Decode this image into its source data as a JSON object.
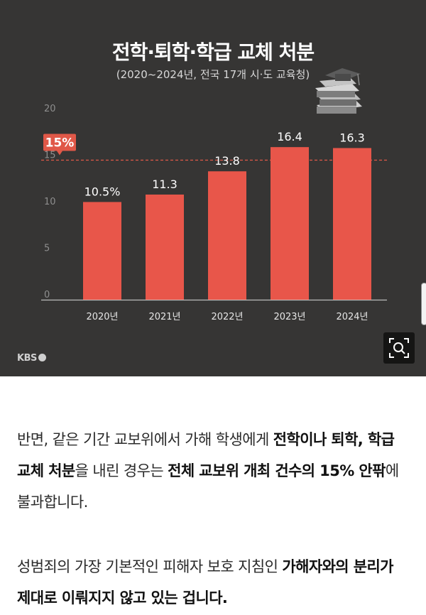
{
  "chart_data": {
    "type": "bar",
    "title": "전학·퇴학·학급 교체 처분",
    "subtitle": "(2020~2024년, 전국 17개 시·도 교육청)",
    "categories": [
      "2020년",
      "2021년",
      "2022년",
      "2023년",
      "2024년"
    ],
    "values": [
      10.5,
      11.3,
      13.8,
      16.4,
      16.3
    ],
    "value_labels": [
      "10.5%",
      "11.3",
      "13.8",
      "16.4",
      "16.3"
    ],
    "yticks": [
      "20",
      "15",
      "10",
      "5",
      "0"
    ],
    "ylim": [
      0,
      20
    ],
    "reference_line": {
      "value": 15,
      "label": "15%"
    },
    "colors": {
      "bar": "#e8564a",
      "background": "#363534",
      "reference": "#e05848"
    },
    "grid": false
  },
  "brand": {
    "label": "KBS",
    "icon": "kbs-logo-dot"
  },
  "zoom": {
    "icon": "zoom-search-icon"
  },
  "illustration": {
    "icon": "book-stack-graduation-cap"
  },
  "article": {
    "p1": {
      "t1": "반면, 같은 기간 교보위에서 가해 학생에게 ",
      "b1": "전학이나 퇴학, 학급 교체 처분",
      "t2": "을 내린 경우는 ",
      "b2": "전체 교보위 개최 건수의 15% 안팎",
      "t3": "에 불과합니다."
    },
    "p2": {
      "t1": "성범죄의 가장 기본적인 피해자 보호 지침인 ",
      "b1": "가해자와의 분리가 제대로 이뤄지지 않고 있는 겁니다."
    }
  }
}
